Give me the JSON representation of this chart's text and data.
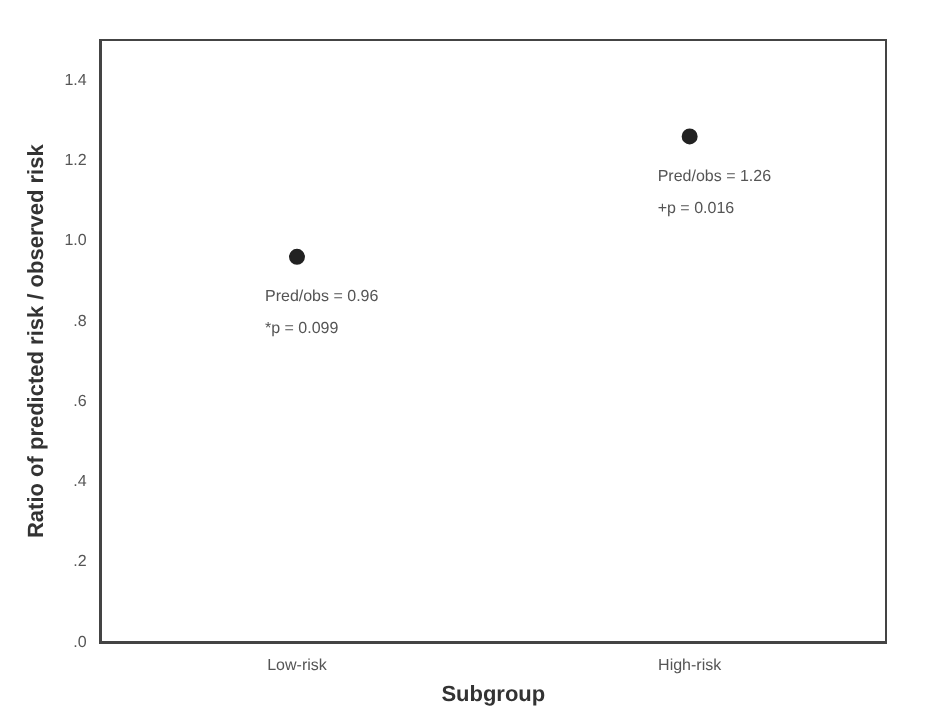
{
  "chart_data": {
    "type": "scatter",
    "categories": [
      "Low-risk",
      "High-risk"
    ],
    "series": [
      {
        "color": "#222222",
        "values": [
          0.96,
          1.26
        ]
      }
    ],
    "xlabel": "Subgroup",
    "ylabel": "Ratio of predicted risk / observed risk",
    "ylim": [
      0,
      1.5
    ],
    "yticks": [
      {
        "value": 0,
        "label": ".0"
      },
      {
        "value": 0.2,
        "label": ".2"
      },
      {
        "value": 0.4,
        "label": ".4"
      },
      {
        "value": 0.6,
        "label": ".6"
      },
      {
        "value": 0.8,
        "label": ".8"
      },
      {
        "value": 1,
        "label": "1.0"
      },
      {
        "value": 1.2,
        "label": "1.2"
      },
      {
        "value": 1.4,
        "label": "1.4"
      }
    ],
    "annotations": [
      {
        "text": "Pred/obs = 0.96",
        "x": "Low-risk",
        "y": 0.96
      },
      "*p = 0.099",
      {
        "text": "Pred/obs = 1.26",
        "x": "High-risk",
        "y": 1.26
      },
      "+p = 0.016"
    ],
    "grid": false,
    "legend": false,
    "marker": "circle"
  }
}
